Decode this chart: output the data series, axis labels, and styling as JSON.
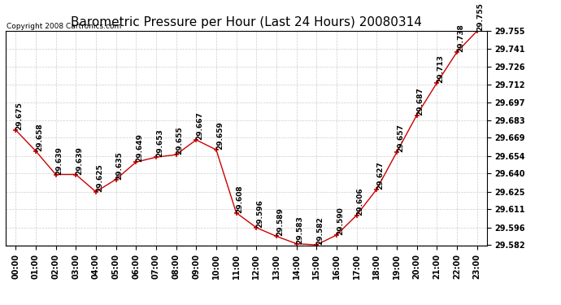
{
  "title": "Barometric Pressure per Hour (Last 24 Hours) 20080314",
  "copyright": "Copyright 2008 Cartronics.com",
  "hours": [
    "00:00",
    "01:00",
    "02:00",
    "03:00",
    "04:00",
    "05:00",
    "06:00",
    "07:00",
    "08:00",
    "09:00",
    "10:00",
    "11:00",
    "12:00",
    "13:00",
    "14:00",
    "15:00",
    "16:00",
    "17:00",
    "18:00",
    "19:00",
    "20:00",
    "21:00",
    "22:00",
    "23:00"
  ],
  "values": [
    29.675,
    29.658,
    29.639,
    29.639,
    29.625,
    29.635,
    29.649,
    29.653,
    29.655,
    29.667,
    29.659,
    29.608,
    29.596,
    29.589,
    29.583,
    29.582,
    29.59,
    29.606,
    29.627,
    29.657,
    29.687,
    29.713,
    29.738,
    29.755
  ],
  "yticks": [
    29.582,
    29.596,
    29.611,
    29.625,
    29.64,
    29.654,
    29.669,
    29.683,
    29.697,
    29.712,
    29.726,
    29.741,
    29.755
  ],
  "line_color": "#cc0000",
  "marker_color": "#cc0000",
  "background_color": "#ffffff",
  "grid_color": "#cccccc",
  "title_fontsize": 11,
  "label_fontsize": 7,
  "annotation_fontsize": 6.5,
  "copyright_fontsize": 6.5
}
